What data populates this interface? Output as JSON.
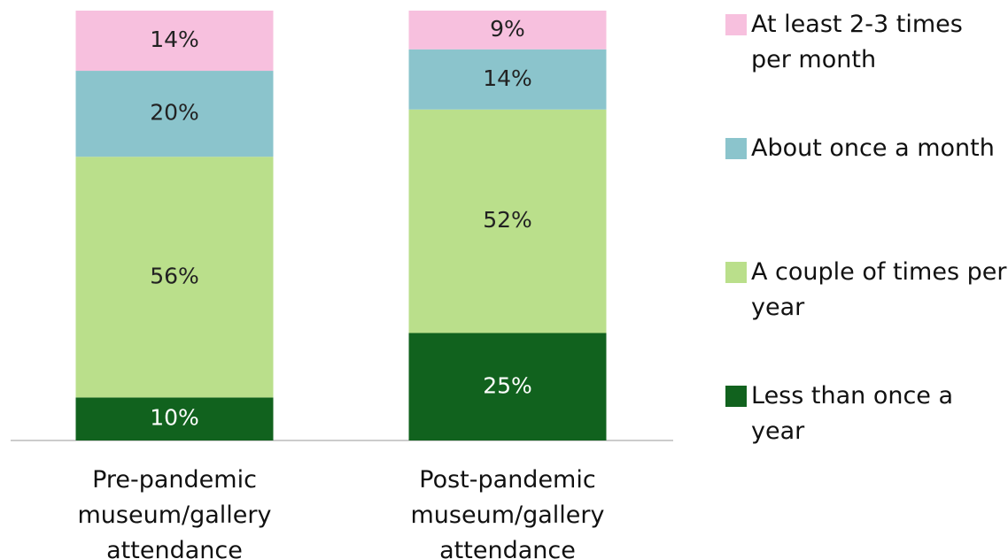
{
  "chart_data": {
    "type": "stacked_bar",
    "categories": [
      "Pre-pandemic museum/gallery attendance",
      "Post-pandemic museum/gallery attendance"
    ],
    "series": [
      {
        "name": "Less than once a year",
        "color": "#11621e",
        "values": [
          10,
          25
        ],
        "value_labels": [
          "10%",
          "25%"
        ]
      },
      {
        "name": "A couple of times per year",
        "color": "#badf8b",
        "values": [
          56,
          52
        ],
        "value_labels": [
          "56%",
          "52%"
        ]
      },
      {
        "name": "About once a month",
        "color": "#8bc4cc",
        "values": [
          20,
          14
        ],
        "value_labels": [
          "20%",
          "14%"
        ]
      },
      {
        "name": "At least 2-3 times per month",
        "color": "#f7c0de",
        "values": [
          14,
          9
        ],
        "value_labels": [
          "14%",
          "9%"
        ]
      }
    ],
    "legend": "right"
  }
}
